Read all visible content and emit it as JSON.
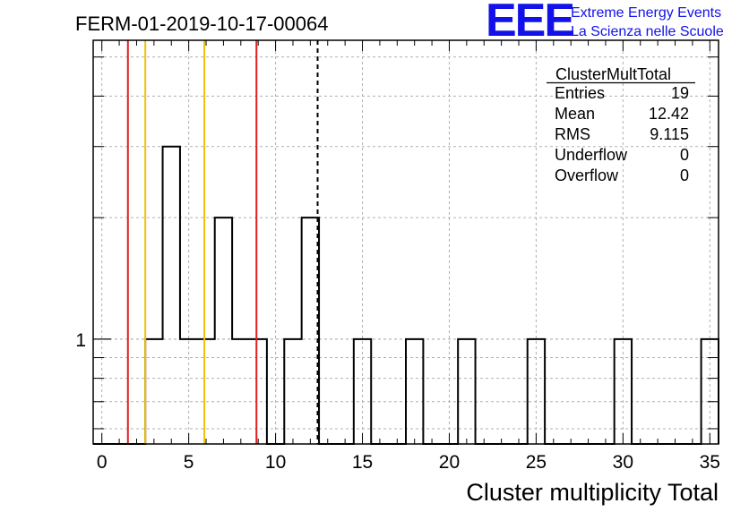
{
  "header": {
    "run_title": "FERM-01-2019-10-17-00064",
    "logo": "EEE",
    "brand_line1": "Extreme Energy Events",
    "brand_line2": "La Scienza nelle Scuole",
    "brand_color": "#1212e8"
  },
  "stats_box": {
    "title": "ClusterMultTotal",
    "rows": [
      {
        "label": "Entries",
        "value": "19"
      },
      {
        "label": "Mean",
        "value": "12.42"
      },
      {
        "label": "RMS",
        "value": "9.115"
      },
      {
        "label": "Underflow",
        "value": "0"
      },
      {
        "label": "Overflow",
        "value": "0"
      }
    ]
  },
  "chart_data": {
    "type": "histogram",
    "xlabel": "Cluster multiplicity Total",
    "ylabel": "",
    "xlim": [
      -0.5,
      35.5
    ],
    "y_scale": "log",
    "ylim": [
      0.55,
      5.5
    ],
    "x_ticks": [
      0,
      5,
      10,
      15,
      20,
      25,
      30,
      35
    ],
    "y_tick_labels": [
      {
        "value": 1,
        "label": "1"
      }
    ],
    "grid": true,
    "bin_width": 1,
    "bins": [
      {
        "x": 3,
        "count": 1
      },
      {
        "x": 4,
        "count": 3
      },
      {
        "x": 5,
        "count": 1
      },
      {
        "x": 6,
        "count": 1
      },
      {
        "x": 7,
        "count": 2
      },
      {
        "x": 8,
        "count": 1
      },
      {
        "x": 9,
        "count": 1
      },
      {
        "x": 11,
        "count": 1
      },
      {
        "x": 12,
        "count": 2
      },
      {
        "x": 15,
        "count": 1
      },
      {
        "x": 18,
        "count": 1
      },
      {
        "x": 21,
        "count": 1
      },
      {
        "x": 25,
        "count": 1
      },
      {
        "x": 30,
        "count": 1
      },
      {
        "x": 35,
        "count": 1
      }
    ],
    "markers": [
      {
        "x": 1.5,
        "color": "#e02020",
        "style": "solid"
      },
      {
        "x": 2.5,
        "color": "#f2c200",
        "style": "solid"
      },
      {
        "x": 5.9,
        "color": "#f2c200",
        "style": "solid"
      },
      {
        "x": 8.9,
        "color": "#e02020",
        "style": "solid"
      },
      {
        "x": 12.42,
        "color": "#000000",
        "style": "dashed"
      }
    ]
  }
}
